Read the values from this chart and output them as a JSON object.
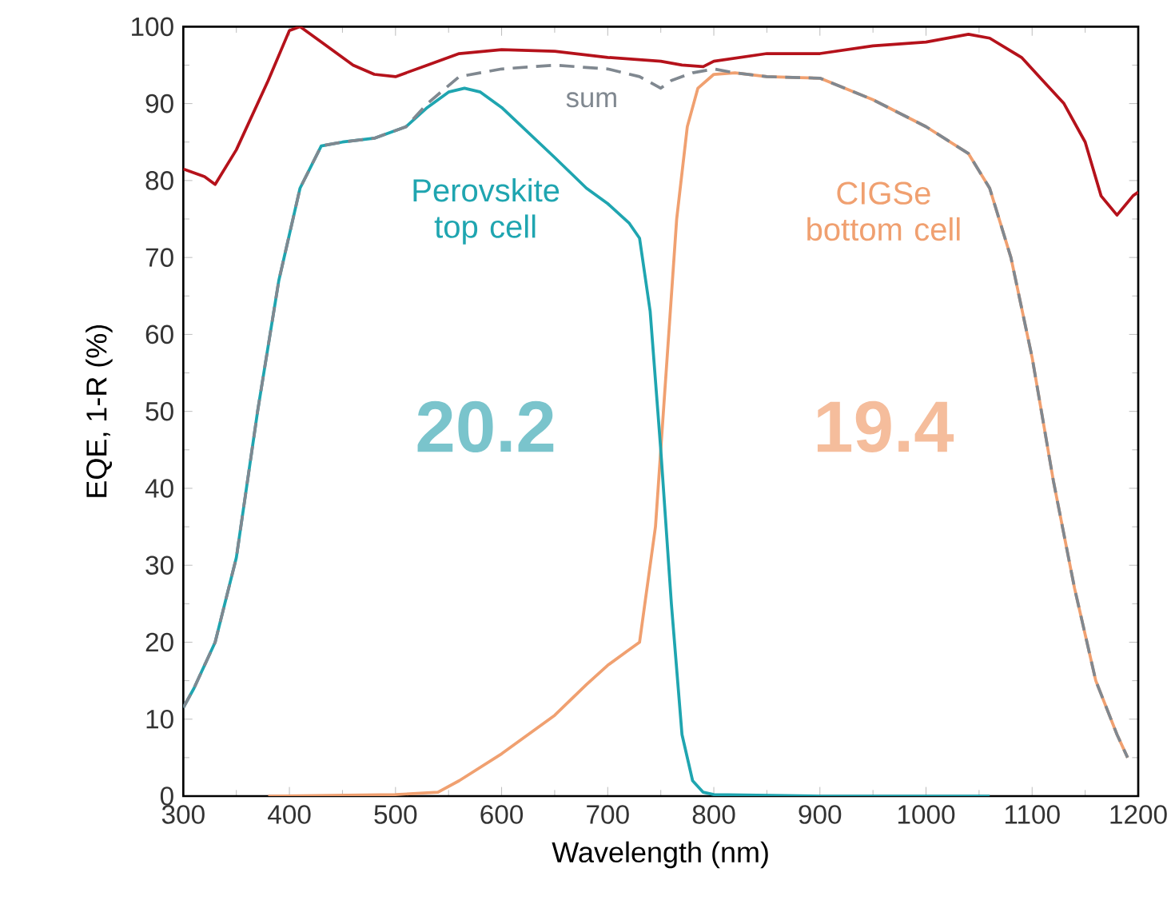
{
  "chart_data": {
    "type": "line",
    "xlabel": "Wavelength (nm)",
    "ylabel": "EQE, 1-R (%)",
    "xlim": [
      300,
      1200
    ],
    "ylim": [
      0,
      100
    ],
    "xticks": [
      300,
      400,
      500,
      600,
      700,
      800,
      900,
      1000,
      1100,
      1200
    ],
    "yticks": [
      0,
      10,
      20,
      30,
      40,
      50,
      60,
      70,
      80,
      90,
      100
    ],
    "grid": false,
    "legend": false,
    "marker": "none",
    "series": [
      {
        "color": "#b5121b",
        "line_style": "solid",
        "x": [
          300,
          320,
          330,
          350,
          380,
          400,
          410,
          430,
          460,
          480,
          500,
          530,
          560,
          600,
          650,
          700,
          750,
          770,
          790,
          800,
          850,
          900,
          950,
          1000,
          1040,
          1060,
          1090,
          1110,
          1130,
          1150,
          1165,
          1180,
          1195,
          1200
        ],
        "values": [
          81.5,
          80.5,
          79.5,
          84,
          93,
          99.5,
          100,
          98,
          95,
          93.8,
          93.5,
          95,
          96.5,
          97,
          96.8,
          96,
          95.5,
          95,
          94.8,
          95.5,
          96.5,
          96.5,
          97.5,
          98,
          99,
          98.5,
          96,
          93,
          90,
          85,
          78,
          75.5,
          78,
          78.5
        ]
      },
      {
        "name": "Perovskite top cell",
        "color": "#1fa5b0",
        "line_style": "solid",
        "x": [
          300,
          310,
          330,
          350,
          370,
          390,
          410,
          430,
          450,
          480,
          510,
          530,
          550,
          565,
          580,
          600,
          650,
          680,
          700,
          720,
          730,
          740,
          750,
          760,
          770,
          780,
          790,
          800,
          900,
          1060
        ],
        "values": [
          11.5,
          14,
          20,
          31,
          50,
          67,
          79,
          84.5,
          85,
          85.5,
          87,
          89.5,
          91.5,
          92,
          91.5,
          89.5,
          83,
          79,
          77,
          74.5,
          72.5,
          63,
          45,
          25,
          8,
          2,
          0.5,
          0.2,
          0,
          0
        ]
      },
      {
        "name": "CIGSe bottom cell",
        "color": "#f0a070",
        "line_style": "solid",
        "x": [
          380,
          500,
          540,
          560,
          600,
          650,
          680,
          700,
          720,
          730,
          745,
          755,
          765,
          775,
          785,
          800,
          820,
          850,
          900,
          950,
          1000,
          1040,
          1060,
          1080,
          1100,
          1120,
          1140,
          1160,
          1180,
          1190
        ],
        "values": [
          0,
          0.2,
          0.5,
          2,
          5.5,
          10.5,
          14.5,
          17,
          19,
          20,
          35,
          55,
          75,
          87,
          92,
          93.8,
          94,
          93.5,
          93.3,
          90.5,
          87,
          83.5,
          79,
          70,
          57,
          41,
          27,
          15,
          8,
          5
        ]
      },
      {
        "name": "sum",
        "color": "#808890",
        "line_style": "dashed",
        "x": [
          300,
          310,
          330,
          350,
          370,
          390,
          410,
          430,
          450,
          480,
          510,
          530,
          560,
          600,
          650,
          700,
          730,
          750,
          760,
          780,
          800,
          820,
          850,
          900,
          950,
          1000,
          1040,
          1060,
          1080,
          1100,
          1120,
          1140,
          1160,
          1180,
          1190
        ],
        "values": [
          11.5,
          14,
          20,
          31,
          50,
          67,
          79,
          84.5,
          85,
          85.5,
          87,
          90,
          93.5,
          94.5,
          95,
          94.5,
          93.5,
          92,
          93,
          94,
          94.5,
          94,
          93.5,
          93.3,
          90.5,
          87,
          83.5,
          79,
          70,
          57,
          41,
          27,
          15,
          8,
          5
        ]
      }
    ],
    "annotations": [
      "20.2",
      "19.4"
    ]
  }
}
